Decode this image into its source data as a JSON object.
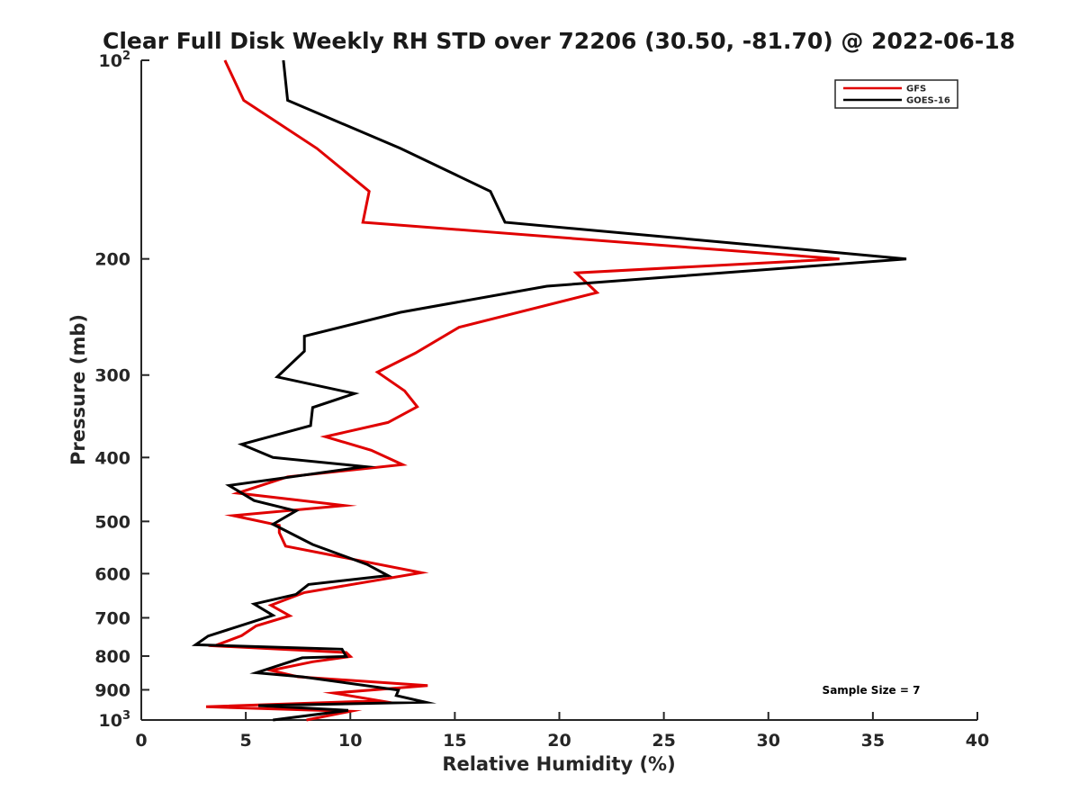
{
  "chart_data": {
    "type": "line",
    "title": "Clear Full Disk Weekly RH STD over 72206 (30.50, -81.70) @ 2022-06-18",
    "xlabel": "Relative Humidity (%)",
    "ylabel": "Pressure (mb)",
    "xlim": [
      0,
      40
    ],
    "ylim": [
      100,
      1000
    ],
    "y_scale": "log",
    "y_reversed": true,
    "grid": false,
    "legend_placement": "top-right",
    "x_ticks": [
      "0",
      "5",
      "10",
      "15",
      "20",
      "25",
      "30",
      "35",
      "40"
    ],
    "x_tick_values": [
      0,
      5,
      10,
      15,
      20,
      25,
      30,
      35,
      40
    ],
    "y_ticks": [
      {
        "value": 100,
        "base": "10",
        "exp": "2"
      },
      {
        "value": 200,
        "base": "200",
        "exp": ""
      },
      {
        "value": 300,
        "base": "300",
        "exp": ""
      },
      {
        "value": 400,
        "base": "400",
        "exp": ""
      },
      {
        "value": 500,
        "base": "500",
        "exp": ""
      },
      {
        "value": 600,
        "base": "600",
        "exp": ""
      },
      {
        "value": 700,
        "base": "700",
        "exp": ""
      },
      {
        "value": 800,
        "base": "800",
        "exp": ""
      },
      {
        "value": 900,
        "base": "900",
        "exp": ""
      },
      {
        "value": 1000,
        "base": "10",
        "exp": "3"
      }
    ],
    "annotation": "Sample Size = 7",
    "series": [
      {
        "name": "GFS",
        "color": "#e00000",
        "points": [
          [
            4.0,
            100
          ],
          [
            4.9,
            115
          ],
          [
            8.4,
            136
          ],
          [
            10.9,
            158
          ],
          [
            10.6,
            176
          ],
          [
            33.4,
            200
          ],
          [
            20.8,
            210
          ],
          [
            21.8,
            225
          ],
          [
            15.2,
            254
          ],
          [
            13.1,
            278
          ],
          [
            11.3,
            297
          ],
          [
            12.6,
            317
          ],
          [
            13.2,
            335
          ],
          [
            11.8,
            354
          ],
          [
            8.8,
            372
          ],
          [
            11.0,
            390
          ],
          [
            12.5,
            410
          ],
          [
            7.0,
            428
          ],
          [
            4.6,
            453
          ],
          [
            9.7,
            473
          ],
          [
            4.4,
            490
          ],
          [
            6.6,
            507
          ],
          [
            6.6,
            520
          ],
          [
            6.9,
            545
          ],
          [
            13.4,
            598
          ],
          [
            7.8,
            641
          ],
          [
            6.2,
            670
          ],
          [
            7.1,
            695
          ],
          [
            5.5,
            720
          ],
          [
            4.8,
            745
          ],
          [
            3.5,
            772
          ],
          [
            9.8,
            790
          ],
          [
            10.0,
            801
          ],
          [
            8.2,
            816
          ],
          [
            6.2,
            841
          ],
          [
            7.5,
            860
          ],
          [
            13.7,
            887
          ],
          [
            9.2,
            910
          ],
          [
            11.4,
            935
          ],
          [
            3.1,
            955
          ],
          [
            10.0,
            970
          ],
          [
            7.9,
            1000
          ]
        ]
      },
      {
        "name": "GOES-16",
        "color": "#000000",
        "points": [
          [
            6.8,
            100
          ],
          [
            7.0,
            115
          ],
          [
            12.4,
            136
          ],
          [
            16.7,
            158
          ],
          [
            17.4,
            176
          ],
          [
            36.6,
            200
          ],
          [
            19.4,
            220
          ],
          [
            12.4,
            241
          ],
          [
            7.8,
            262
          ],
          [
            7.8,
            276
          ],
          [
            6.5,
            302
          ],
          [
            10.2,
            320
          ],
          [
            8.2,
            336
          ],
          [
            8.1,
            358
          ],
          [
            4.8,
            382
          ],
          [
            6.3,
            400
          ],
          [
            10.7,
            413
          ],
          [
            4.2,
            441
          ],
          [
            5.4,
            465
          ],
          [
            7.4,
            482
          ],
          [
            6.3,
            505
          ],
          [
            8.2,
            542
          ],
          [
            10.8,
            581
          ],
          [
            11.8,
            604
          ],
          [
            8.0,
            623
          ],
          [
            7.4,
            645
          ],
          [
            5.4,
            667
          ],
          [
            6.3,
            694
          ],
          [
            3.2,
            746
          ],
          [
            2.6,
            769
          ],
          [
            9.6,
            781
          ],
          [
            9.8,
            801
          ],
          [
            7.7,
            805
          ],
          [
            5.5,
            848
          ],
          [
            7.7,
            860
          ],
          [
            12.3,
            901
          ],
          [
            12.2,
            918
          ],
          [
            13.6,
            940
          ],
          [
            5.6,
            951
          ],
          [
            9.9,
            967
          ],
          [
            6.3,
            1000
          ]
        ]
      }
    ]
  }
}
